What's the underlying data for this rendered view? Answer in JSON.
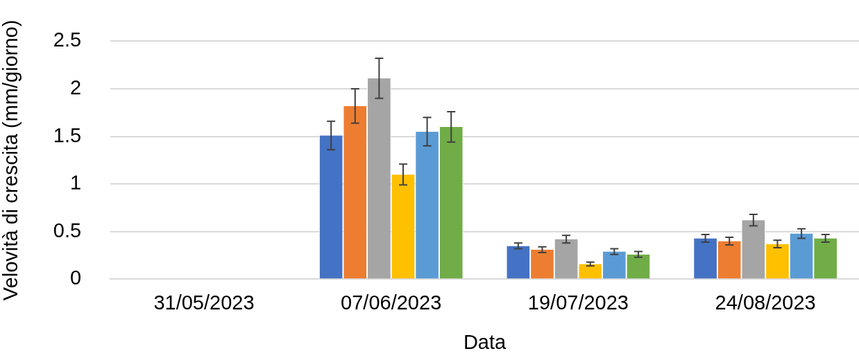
{
  "chart_data": {
    "type": "bar",
    "xlabel": "Data",
    "ylabel": "Velovità di crescita (mm/giorno)",
    "categories": [
      "31/05/2023",
      "07/06/2023",
      "19/07/2023",
      "24/08/2023"
    ],
    "series": [
      {
        "color": "#4472c4",
        "values": [
          0,
          1.51,
          0.35,
          0.43
        ],
        "errors": [
          null,
          0.15,
          0.03,
          0.04
        ]
      },
      {
        "color": "#ed7d31",
        "values": [
          0,
          1.82,
          0.31,
          0.4
        ],
        "errors": [
          null,
          0.18,
          0.03,
          0.04
        ]
      },
      {
        "color": "#a5a5a5",
        "values": [
          0,
          2.11,
          0.42,
          0.62
        ],
        "errors": [
          null,
          0.21,
          0.04,
          0.06
        ]
      },
      {
        "color": "#ffc000",
        "values": [
          0,
          1.1,
          0.16,
          0.37
        ],
        "errors": [
          null,
          0.11,
          0.02,
          0.04
        ]
      },
      {
        "color": "#5b9bd5",
        "values": [
          0,
          1.55,
          0.29,
          0.48
        ],
        "errors": [
          null,
          0.15,
          0.03,
          0.05
        ]
      },
      {
        "color": "#70ad47",
        "values": [
          0,
          1.6,
          0.26,
          0.43
        ],
        "errors": [
          null,
          0.16,
          0.03,
          0.04
        ]
      }
    ],
    "ylim": [
      0,
      2.5
    ],
    "yticks": [
      0,
      0.5,
      1,
      1.5,
      2,
      2.5
    ],
    "grid": "y",
    "legend": false
  }
}
